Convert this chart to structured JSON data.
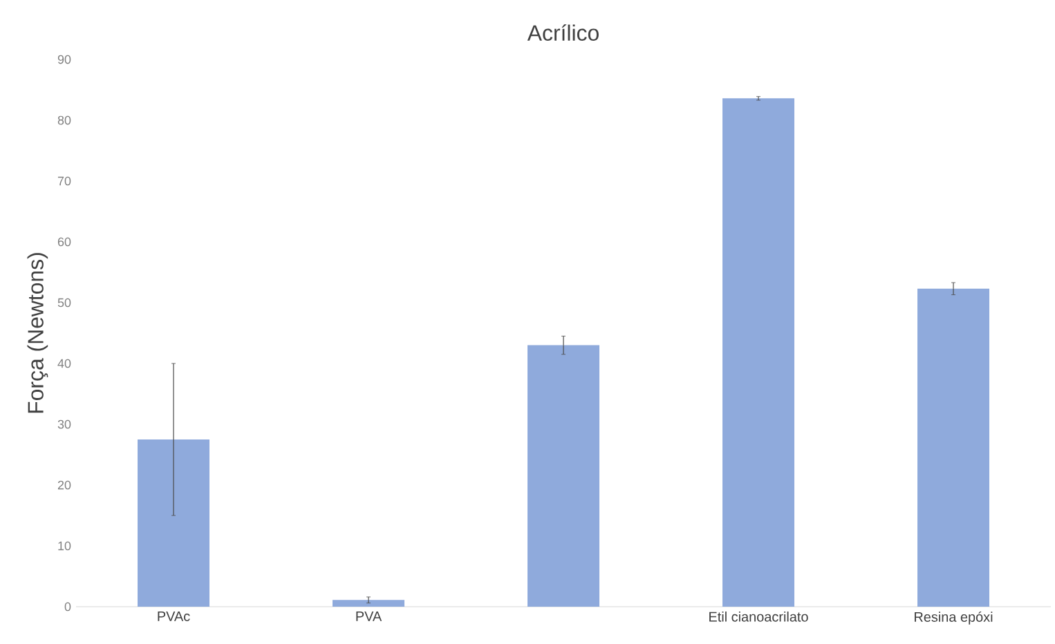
{
  "chart_data": {
    "type": "bar",
    "title": "Acrílico",
    "ylabel": "Força (Newtons)",
    "categories": [
      "PVAc",
      "PVA",
      null,
      "Etil cianoacrilato",
      "Resina epóxi"
    ],
    "values": [
      27.5,
      1.1,
      43,
      83.6,
      52.3
    ],
    "errors": [
      12.5,
      0.5,
      1.5,
      0.3,
      1
    ],
    "color": "#8faadc",
    "ylim": [
      0,
      90
    ],
    "yticks": [
      0,
      10,
      20,
      30,
      40,
      50,
      60,
      70,
      80,
      90
    ]
  }
}
